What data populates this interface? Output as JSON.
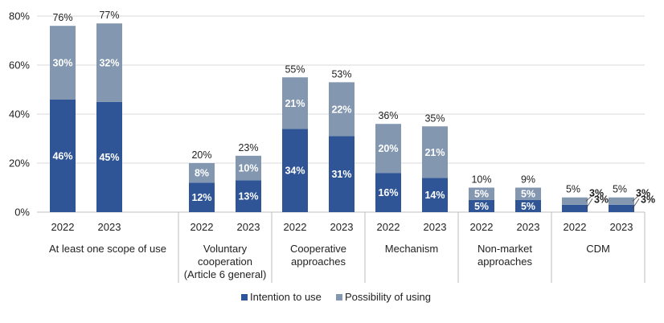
{
  "chart_data": {
    "type": "bar",
    "stacked": true,
    "ylim": [
      0,
      80
    ],
    "yticks": [
      "0%",
      "20%",
      "40%",
      "60%",
      "80%"
    ],
    "grid": true,
    "legend_position": "bottom",
    "groups": [
      {
        "name": "At least one scope of use",
        "lines": [
          "At least one scope of use"
        ],
        "bars": [
          {
            "year": "2022",
            "intention": 46,
            "possibility": 30,
            "total": 76
          },
          {
            "year": "2023",
            "intention": 45,
            "possibility": 32,
            "total": 77
          }
        ]
      },
      {
        "name": "Voluntary cooperation (Article 6 general)",
        "lines": [
          "Voluntary",
          "cooperation",
          "(Article 6 general)"
        ],
        "bars": [
          {
            "year": "2022",
            "intention": 12,
            "possibility": 8,
            "total": 20
          },
          {
            "year": "2023",
            "intention": 13,
            "possibility": 10,
            "total": 23
          }
        ]
      },
      {
        "name": "Cooperative approaches",
        "lines": [
          "Cooperative",
          "approaches"
        ],
        "bars": [
          {
            "year": "2022",
            "intention": 34,
            "possibility": 21,
            "total": 55
          },
          {
            "year": "2023",
            "intention": 31,
            "possibility": 22,
            "total": 53
          }
        ]
      },
      {
        "name": "Mechanism",
        "lines": [
          "Mechanism"
        ],
        "bars": [
          {
            "year": "2022",
            "intention": 16,
            "possibility": 20,
            "total": 36
          },
          {
            "year": "2023",
            "intention": 14,
            "possibility": 21,
            "total": 35
          }
        ]
      },
      {
        "name": "Non-market approaches",
        "lines": [
          "Non-market",
          "approaches"
        ],
        "bars": [
          {
            "year": "2022",
            "intention": 5,
            "possibility": 5,
            "total": 10
          },
          {
            "year": "2023",
            "intention": 5,
            "possibility": 5,
            "total": 9
          }
        ]
      },
      {
        "name": "CDM",
        "lines": [
          "CDM"
        ],
        "bars": [
          {
            "year": "2022",
            "intention": 3,
            "possibility": 3,
            "total": 5
          },
          {
            "year": "2023",
            "intention": 3,
            "possibility": 3,
            "total": 5
          }
        ]
      }
    ],
    "series": [
      {
        "name": "Intention to use",
        "color": "#2F5597"
      },
      {
        "name": "Possibility of using",
        "color": "#8497B0"
      }
    ]
  }
}
